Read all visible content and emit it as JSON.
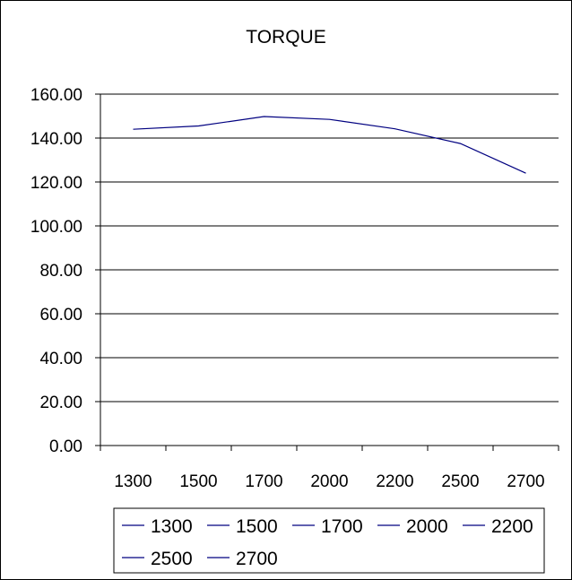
{
  "chart_data": {
    "type": "line",
    "title": "TORQUE",
    "xlabel": "",
    "ylabel": "",
    "categories": [
      "1300",
      "1500",
      "1700",
      "2000",
      "2200",
      "2500",
      "2700"
    ],
    "series": [
      {
        "name": "",
        "values": [
          144.0,
          145.5,
          149.8,
          148.5,
          144.2,
          137.5,
          124.0
        ]
      }
    ],
    "ylim": [
      0,
      160
    ],
    "yticks": [
      "0.00",
      "20.00",
      "40.00",
      "60.00",
      "80.00",
      "100.00",
      "120.00",
      "140.00",
      "160.00"
    ],
    "grid": true,
    "legend_position": "bottom",
    "legend_entries": [
      "1300",
      "1500",
      "1700",
      "2000",
      "2200",
      "2500",
      "2700"
    ],
    "colors": {
      "line": "#000080",
      "grid": "#000000",
      "background": "#ffffff"
    }
  }
}
